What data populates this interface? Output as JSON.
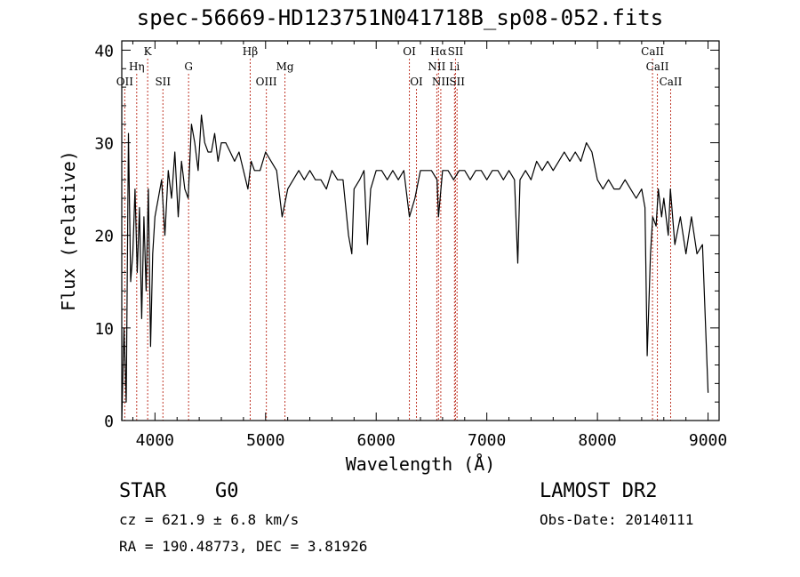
{
  "chart_data": {
    "type": "line",
    "title": "spec-56669-HD123751N041718B_sp08-052.fits",
    "xlabel": "Wavelength (Å)",
    "ylabel": "Flux (relative)",
    "xlim": [
      3700,
      9100
    ],
    "ylim": [
      0,
      41
    ],
    "xticks": [
      4000,
      5000,
      6000,
      7000,
      8000,
      9000
    ],
    "yticks": [
      0,
      10,
      20,
      30,
      40
    ],
    "grid": false,
    "series": [
      {
        "x": [
          3700,
          3720,
          3740,
          3760,
          3780,
          3800,
          3820,
          3840,
          3860,
          3880,
          3900,
          3920,
          3940,
          3960,
          3980,
          4000,
          4030,
          4060,
          4090,
          4120,
          4150,
          4180,
          4210,
          4240,
          4270,
          4300,
          4330,
          4360,
          4390,
          4420,
          4450,
          4480,
          4510,
          4540,
          4570,
          4600,
          4640,
          4680,
          4720,
          4760,
          4800,
          4840,
          4870,
          4900,
          4950,
          5000,
          5050,
          5100,
          5150,
          5200,
          5250,
          5300,
          5350,
          5400,
          5450,
          5500,
          5550,
          5600,
          5650,
          5700,
          5750,
          5780,
          5800,
          5850,
          5890,
          5920,
          5950,
          6000,
          6050,
          6100,
          6150,
          6200,
          6250,
          6300,
          6350,
          6400,
          6450,
          6500,
          6550,
          6563,
          6600,
          6650,
          6700,
          6750,
          6800,
          6850,
          6900,
          6950,
          7000,
          7050,
          7100,
          7150,
          7200,
          7250,
          7280,
          7300,
          7350,
          7400,
          7450,
          7500,
          7550,
          7600,
          7650,
          7700,
          7750,
          7800,
          7850,
          7900,
          7950,
          8000,
          8050,
          8100,
          8150,
          8200,
          8250,
          8300,
          8350,
          8400,
          8430,
          8450,
          8480,
          8500,
          8530,
          8550,
          8580,
          8600,
          8640,
          8660,
          8700,
          8750,
          8800,
          8850,
          8900,
          8950,
          9000
        ],
        "y": [
          0,
          10,
          2,
          31,
          15,
          18,
          25,
          16,
          23,
          11,
          22,
          14,
          25,
          8,
          18,
          22,
          24,
          26,
          20,
          27,
          24,
          29,
          22,
          28,
          25,
          24,
          32,
          30,
          27,
          33,
          30,
          29,
          29,
          31,
          28,
          30,
          30,
          29,
          28,
          29,
          27,
          25,
          28,
          27,
          27,
          29,
          28,
          27,
          22,
          25,
          26,
          27,
          26,
          27,
          26,
          26,
          25,
          27,
          26,
          26,
          20,
          18,
          25,
          26,
          27,
          19,
          25,
          27,
          27,
          26,
          27,
          26,
          27,
          22,
          24,
          27,
          27,
          27,
          26,
          22,
          27,
          27,
          26,
          27,
          27,
          26,
          27,
          27,
          26,
          27,
          27,
          26,
          27,
          26,
          17,
          26,
          27,
          26,
          28,
          27,
          28,
          27,
          28,
          29,
          28,
          29,
          28,
          30,
          29,
          26,
          25,
          26,
          25,
          25,
          26,
          25,
          24,
          25,
          23,
          7,
          18,
          22,
          21,
          25,
          22,
          24,
          20,
          25,
          19,
          22,
          18,
          22,
          18,
          19,
          3
        ]
      }
    ],
    "lines_top": [
      {
        "label": "K",
        "wl": 3934
      },
      {
        "label": "Hβ",
        "wl": 4861
      },
      {
        "label": "OI",
        "wl": 6300
      },
      {
        "label": "Hα",
        "wl": 6563
      },
      {
        "label": "SII",
        "wl": 6717
      },
      {
        "label": "CaII",
        "wl": 8498
      }
    ],
    "lines_mid": [
      {
        "label": "Hη",
        "wl": 3835
      },
      {
        "label": "G",
        "wl": 4304
      },
      {
        "label": "Mg",
        "wl": 5175
      },
      {
        "label": "NII",
        "wl": 6548
      },
      {
        "label": "Li",
        "wl": 6708
      },
      {
        "label": "CaII",
        "wl": 8542
      }
    ],
    "lines_low": [
      {
        "label": "OII",
        "wl": 3727
      },
      {
        "label": "SII",
        "wl": 4072
      },
      {
        "label": "OIII",
        "wl": 5007
      },
      {
        "label": "OI",
        "wl": 6364
      },
      {
        "label": "NII",
        "wl": 6584
      },
      {
        "label": "SII",
        "wl": 6731
      },
      {
        "label": "CaII",
        "wl": 8662
      }
    ]
  },
  "info": {
    "object": "STAR",
    "subclass": "G0",
    "survey": "LAMOST DR2",
    "cz": "cz = 621.9 ± 6.8 km/s",
    "obs_date": "Obs-Date: 20140111",
    "radec": "RA = 190.48773, DEC =    3.81926"
  }
}
